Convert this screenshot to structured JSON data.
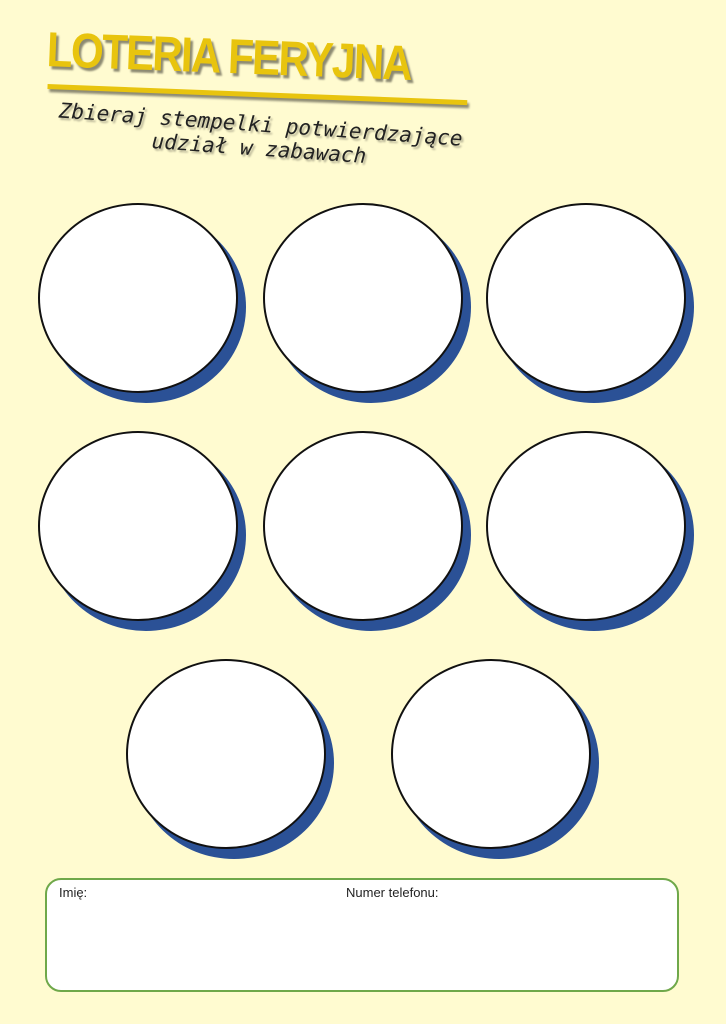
{
  "header": {
    "title": "LOTERIA FERYJNA",
    "subtitle_line1": "Zbieraj stempelki potwierdzające",
    "subtitle_line2": "udział w zabawach"
  },
  "stamps": {
    "count": 8,
    "circle_color": "#ffffff",
    "shadow_color": "#2b5196"
  },
  "form": {
    "name_label": "Imię:",
    "phone_label": "Numer telefonu:"
  },
  "colors": {
    "background": "#fffbd0",
    "title": "#e8c40e",
    "form_border": "#6fa84a"
  }
}
